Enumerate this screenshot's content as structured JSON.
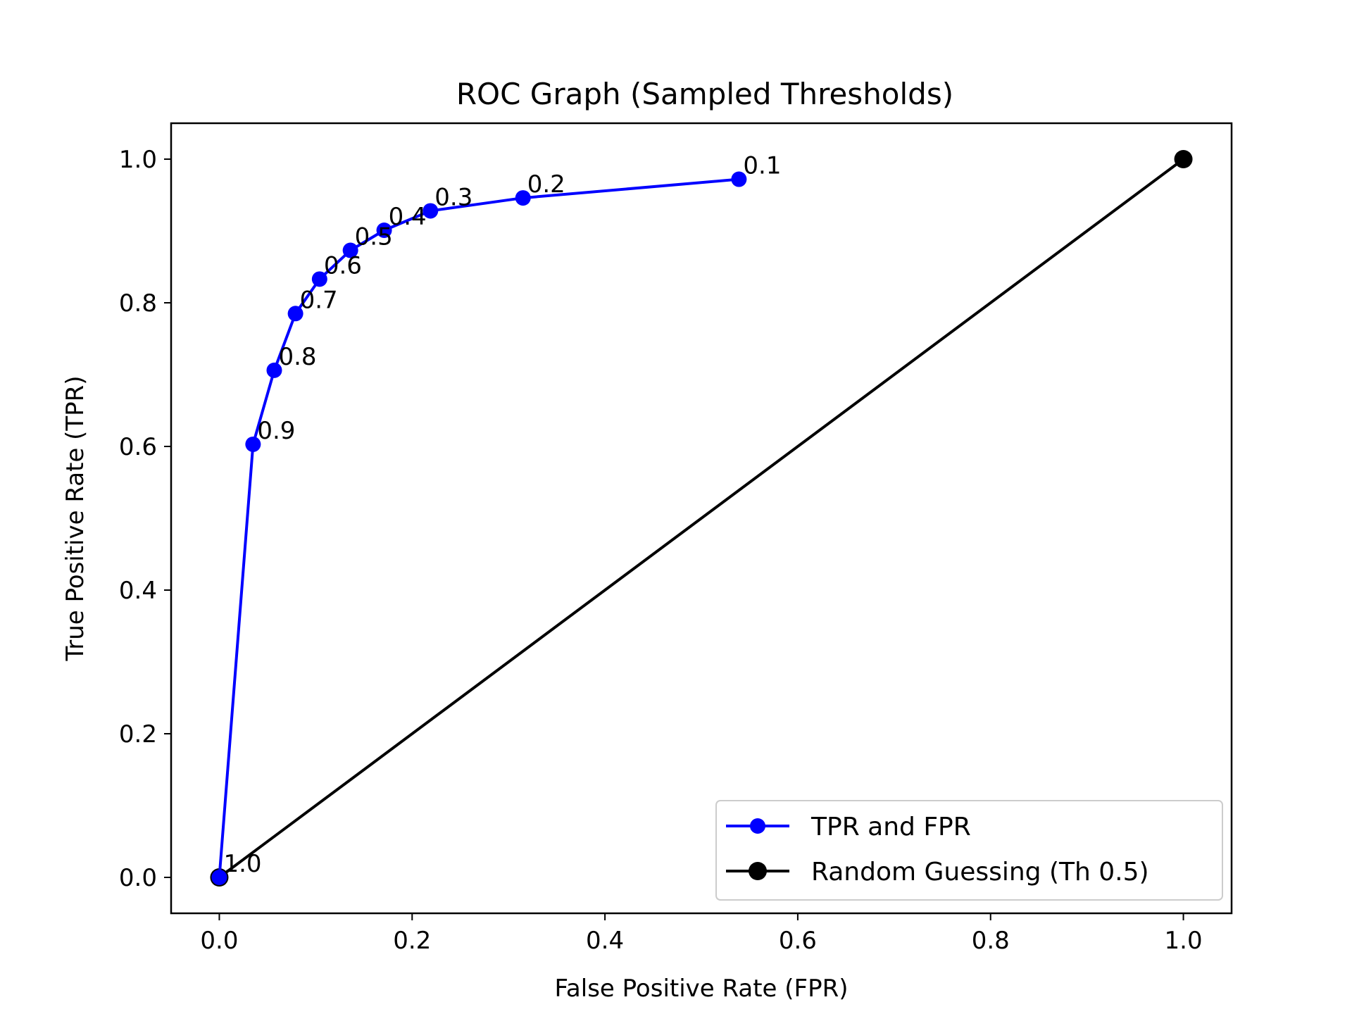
{
  "chart_data": {
    "type": "line",
    "title": "ROC Graph (Sampled Thresholds)",
    "xlabel": "False Positive Rate (FPR)",
    "ylabel": "True Positive Rate (TPR)",
    "xlim": [
      -0.05,
      1.05
    ],
    "ylim": [
      -0.05,
      1.05
    ],
    "xticks": [
      "0.0",
      "0.2",
      "0.4",
      "0.6",
      "0.8",
      "1.0"
    ],
    "yticks": [
      "0.0",
      "0.2",
      "0.4",
      "0.6",
      "0.8",
      "1.0"
    ],
    "grid": false,
    "legend_position": "bottom-right",
    "series": [
      {
        "name": "TPR and FPR",
        "color": "#0000ff",
        "marker": "circle",
        "x": [
          0.0,
          0.035,
          0.057,
          0.079,
          0.104,
          0.136,
          0.171,
          0.219,
          0.315,
          0.539
        ],
        "y": [
          0.0,
          0.603,
          0.706,
          0.785,
          0.833,
          0.873,
          0.901,
          0.928,
          0.946,
          0.972
        ],
        "point_labels": [
          "1.0",
          "0.9",
          "0.8",
          "0.7",
          "0.6",
          "0.5",
          "0.4",
          "0.3",
          "0.2",
          "0.1"
        ]
      },
      {
        "name": "Random Guessing (Th 0.5)",
        "color": "#000000",
        "marker": "circle",
        "x": [
          0.0,
          1.0
        ],
        "y": [
          0.0,
          1.0
        ]
      }
    ]
  }
}
